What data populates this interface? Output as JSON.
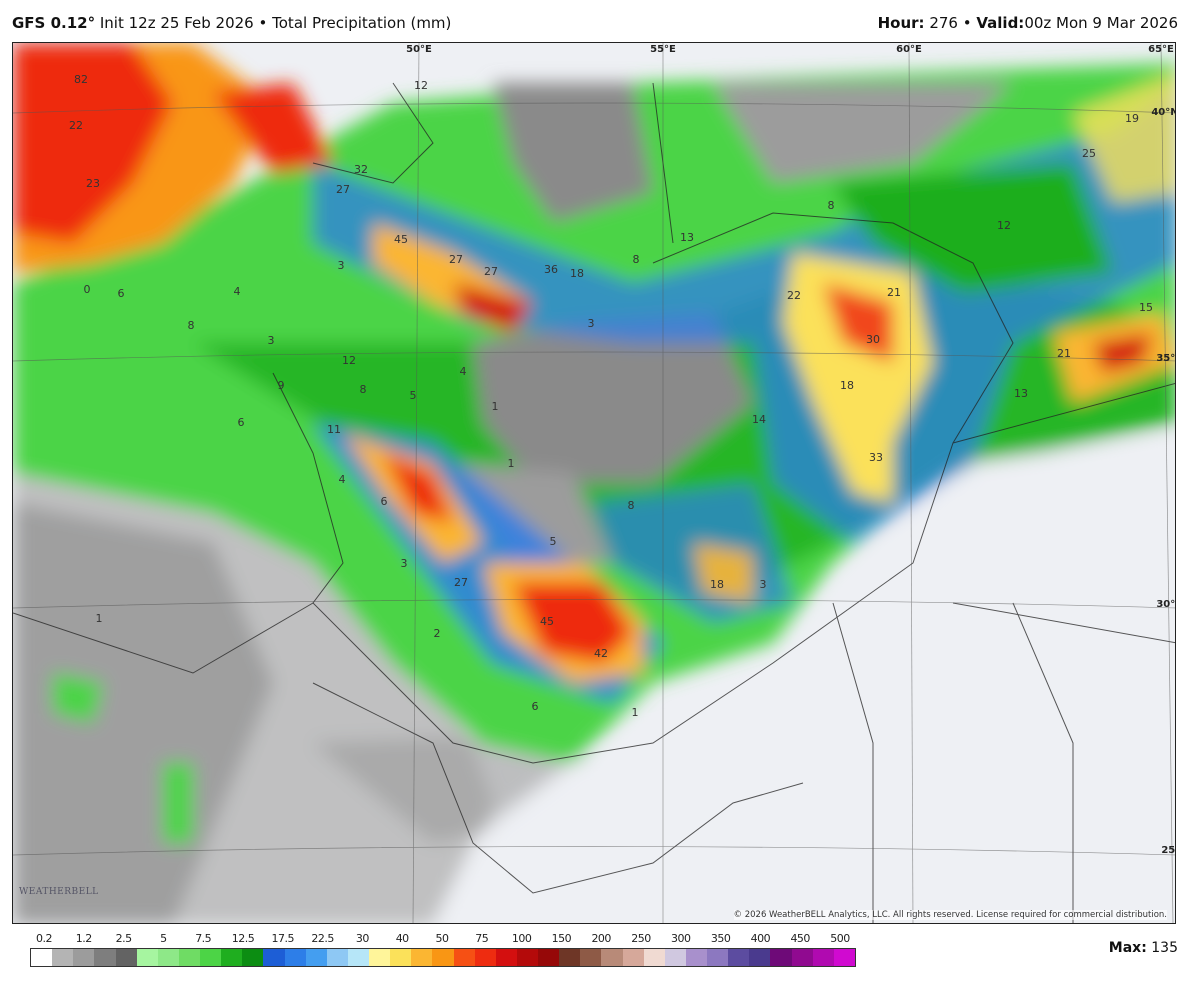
{
  "header": {
    "model": "GFS 0.12°",
    "init": "Init 12z 25 Feb 2026",
    "separator": "•",
    "field": "Total Precipitation (mm)",
    "hour_label": "Hour:",
    "hour": "276",
    "valid_label": "Valid:",
    "valid": "00z Mon 9 Mar 2026"
  },
  "map": {
    "graticule_labels": [
      "50°E",
      "55°E",
      "60°E",
      "65°E",
      "40°N",
      "35°N",
      "30°N",
      "25°N"
    ],
    "value_labels": [
      "82",
      "22",
      "23",
      "12",
      "32",
      "27",
      "45",
      "27",
      "27",
      "36",
      "18",
      "8",
      "13",
      "8",
      "12",
      "22",
      "21",
      "30",
      "18",
      "14",
      "33",
      "25",
      "19",
      "15",
      "21",
      "13",
      "11",
      "6",
      "3",
      "27",
      "45",
      "42",
      "18",
      "3",
      "8",
      "5",
      "1",
      "1",
      "12",
      "8",
      "9",
      "4",
      "4",
      "5",
      "6",
      "3",
      "6",
      "8",
      "2",
      "1",
      "6",
      "1",
      "3",
      "4",
      "3",
      "0"
    ],
    "logo": "WeatherBELL",
    "copyright": "© 2026 WeatherBELL Analytics, LLC. All rights reserved. License required for commercial distribution."
  },
  "legend": {
    "ticks": [
      "0.2",
      "1.2",
      "2.5",
      "5",
      "7.5",
      "12.5",
      "17.5",
      "22.5",
      "30",
      "40",
      "50",
      "75",
      "100",
      "150",
      "200",
      "250",
      "300",
      "350",
      "400",
      "450",
      "500"
    ],
    "colors": [
      "#ffffff",
      "#b4b4b4",
      "#9c9c9c",
      "#7e7e7e",
      "#636363",
      "#a6f5a0",
      "#8ee888",
      "#6fdc64",
      "#4cd446",
      "#1fae1f",
      "#0c8d12",
      "#1d5ed6",
      "#2d7ee8",
      "#449ef0",
      "#8ec8f4",
      "#b6e6f8",
      "#fff59a",
      "#fbe15a",
      "#fbb632",
      "#f99614",
      "#f65014",
      "#ee2c10",
      "#d40f0f",
      "#b40a0a",
      "#960808",
      "#6e3626",
      "#8e5a46",
      "#b88a78",
      "#d6a89a",
      "#f0dad2",
      "#d0c8e0",
      "#a890cc",
      "#8c78c0",
      "#5c4ca0",
      "#4a3a8e",
      "#6e0a78",
      "#900a90",
      "#b00ab0",
      "#d00ad0"
    ],
    "max_label": "Max:",
    "max": "135"
  }
}
